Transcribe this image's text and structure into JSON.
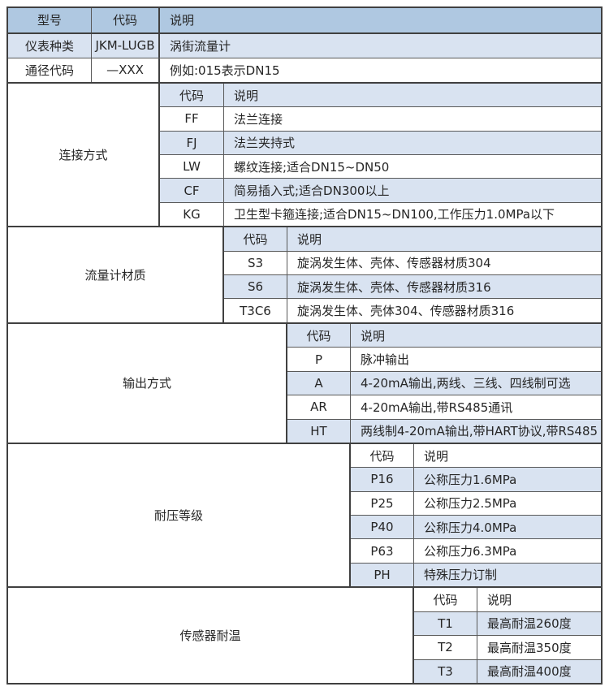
{
  "table": {
    "header": {
      "col1": "型号",
      "col2": "代码",
      "col3": "说明"
    },
    "top_rows": [
      {
        "label": "仪表种类",
        "code": "JKM-LUGB",
        "desc": "涡街流量计"
      },
      {
        "label": "通径代码",
        "code": "—XXX",
        "desc": "例如:015表示DN15"
      }
    ],
    "sections": [
      {
        "label": "连接方式",
        "header": {
          "code": "代码",
          "desc": "说明"
        },
        "rows": [
          {
            "code": "FF",
            "desc": "法兰连接"
          },
          {
            "code": "FJ",
            "desc": "法兰夹持式"
          },
          {
            "code": "LW",
            "desc": "螺纹连接;适合DN15~DN50"
          },
          {
            "code": "CF",
            "desc": "简易插入式;适合DN300以上"
          },
          {
            "code": "KG",
            "desc": "卫生型卡箍连接;适合DN15~DN100,工作压力1.0MPa以下"
          }
        ]
      },
      {
        "label": "流量计材质",
        "header": {
          "code": "代码",
          "desc": "说明"
        },
        "rows": [
          {
            "code": "S3",
            "desc": "旋涡发生体、壳体、传感器材质304"
          },
          {
            "code": "S6",
            "desc": "旋涡发生体、壳体、传感器材质316"
          },
          {
            "code": "T3C6",
            "desc": "旋涡发生体、壳体304、传感器材质316"
          }
        ]
      },
      {
        "label": "输出方式",
        "header": {
          "code": "代码",
          "desc": "说明"
        },
        "rows": [
          {
            "code": "P",
            "desc": "脉冲输出"
          },
          {
            "code": "A",
            "desc": "4-20mA输出,两线、三线、四线制可选"
          },
          {
            "code": "AR",
            "desc": "4-20mA输出,带RS485通讯"
          },
          {
            "code": "HT",
            "desc": "两线制4-20mA输出,带HART协议,带RS485"
          }
        ]
      },
      {
        "label": "耐压等级",
        "header": {
          "code": "代码",
          "desc": "说明"
        },
        "rows": [
          {
            "code": "P16",
            "desc": "公称压力1.6MPa"
          },
          {
            "code": "P25",
            "desc": "公称压力2.5MPa"
          },
          {
            "code": "P40",
            "desc": "公称压力4.0MPa"
          },
          {
            "code": "P63",
            "desc": "公称压力6.3MPa"
          },
          {
            "code": "PH",
            "desc": "特殊压力订制"
          }
        ]
      },
      {
        "label": "传感器耐温",
        "header": {
          "code": "代码",
          "desc": "说明"
        },
        "rows": [
          {
            "code": "T1",
            "desc": "最高耐温260度"
          },
          {
            "code": "T2",
            "desc": "最高耐温350度"
          },
          {
            "code": "T3",
            "desc": "最高耐温400度"
          }
        ]
      }
    ],
    "colors": {
      "header_bg": "#afc8e1",
      "row_alt_bg": "#d9e3f1",
      "row_bg": "#ffffff",
      "border_dark": "#404040",
      "border_light": "#595959",
      "text": "#262626"
    }
  }
}
